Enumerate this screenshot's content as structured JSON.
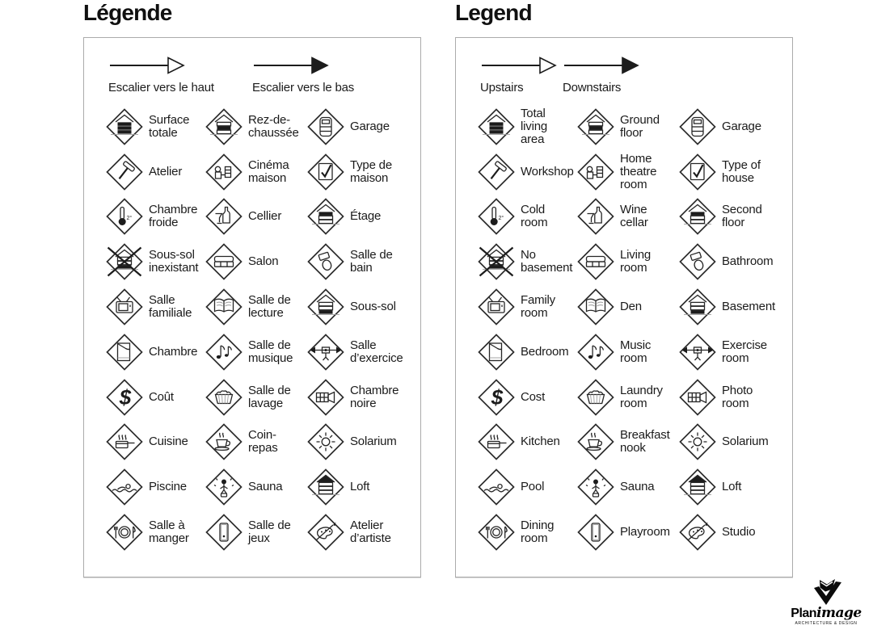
{
  "colors": {
    "ink": "#1b1b1b",
    "panel_border": "#ababab",
    "background": "#ffffff"
  },
  "panels": [
    {
      "id": "french",
      "title": "Légende",
      "arrows": [
        {
          "icon": "stairs-up-arrow",
          "label": "Escalier vers le haut"
        },
        {
          "icon": "stairs-down-arrow",
          "label": "Escalier vers le bas"
        }
      ],
      "items": [
        {
          "icon": "total-area",
          "label": "Surface\ntotale"
        },
        {
          "icon": "ground-floor",
          "label": "Rez-de-\nchaussée"
        },
        {
          "icon": "garage",
          "label": "Garage"
        },
        {
          "icon": "workshop",
          "label": "Atelier"
        },
        {
          "icon": "home-theatre",
          "label": "Cinéma\nmaison"
        },
        {
          "icon": "house-type",
          "label": "Type de\nmaison"
        },
        {
          "icon": "cold-room",
          "label": "Chambre\nfroide"
        },
        {
          "icon": "wine-cellar",
          "label": "Cellier"
        },
        {
          "icon": "second-floor",
          "label": "Étage"
        },
        {
          "icon": "no-basement",
          "label": "Sous-sol\ninexistant"
        },
        {
          "icon": "living-room",
          "label": "Salon"
        },
        {
          "icon": "bathroom",
          "label": "Salle de\nbain"
        },
        {
          "icon": "family-room",
          "label": "Salle\nfamiliale"
        },
        {
          "icon": "den",
          "label": "Salle de\nlecture"
        },
        {
          "icon": "basement",
          "label": "Sous-sol"
        },
        {
          "icon": "bedroom",
          "label": "Chambre"
        },
        {
          "icon": "music-room",
          "label": "Salle de\nmusique"
        },
        {
          "icon": "exercise-room",
          "label": "Salle\nd’exercice"
        },
        {
          "icon": "cost",
          "label": "Coût"
        },
        {
          "icon": "laundry",
          "label": "Salle de\nlavage"
        },
        {
          "icon": "photo-room",
          "label": "Chambre\nnoire"
        },
        {
          "icon": "kitchen",
          "label": "Cuisine"
        },
        {
          "icon": "breakfast-nook",
          "label": "Coin-\nrepas"
        },
        {
          "icon": "solarium",
          "label": "Solarium"
        },
        {
          "icon": "pool",
          "label": "Piscine"
        },
        {
          "icon": "sauna",
          "label": "Sauna"
        },
        {
          "icon": "loft",
          "label": "Loft"
        },
        {
          "icon": "dining-room",
          "label": "Salle à\nmanger"
        },
        {
          "icon": "playroom",
          "label": "Salle de\njeux"
        },
        {
          "icon": "studio",
          "label": "Atelier\nd’artiste"
        }
      ]
    },
    {
      "id": "english",
      "title": "Legend",
      "arrows": [
        {
          "icon": "stairs-up-arrow",
          "label": "Upstairs"
        },
        {
          "icon": "stairs-down-arrow",
          "label": "Downstairs"
        }
      ],
      "items": [
        {
          "icon": "total-area",
          "label": "Total\nliving\narea"
        },
        {
          "icon": "ground-floor",
          "label": "Ground\nfloor"
        },
        {
          "icon": "garage",
          "label": "Garage"
        },
        {
          "icon": "workshop",
          "label": "Workshop"
        },
        {
          "icon": "home-theatre",
          "label": "Home\ntheatre\nroom"
        },
        {
          "icon": "house-type",
          "label": "Type of\nhouse"
        },
        {
          "icon": "cold-room",
          "label": "Cold\nroom"
        },
        {
          "icon": "wine-cellar",
          "label": "Wine\ncellar"
        },
        {
          "icon": "second-floor",
          "label": "Second\nfloor"
        },
        {
          "icon": "no-basement",
          "label": "No\nbasement"
        },
        {
          "icon": "living-room",
          "label": "Living\nroom"
        },
        {
          "icon": "bathroom",
          "label": "Bathroom"
        },
        {
          "icon": "family-room",
          "label": "Family\nroom"
        },
        {
          "icon": "den",
          "label": "Den"
        },
        {
          "icon": "basement",
          "label": "Basement"
        },
        {
          "icon": "bedroom",
          "label": "Bedroom"
        },
        {
          "icon": "music-room",
          "label": "Music\nroom"
        },
        {
          "icon": "exercise-room",
          "label": "Exercise\nroom"
        },
        {
          "icon": "cost",
          "label": "Cost"
        },
        {
          "icon": "laundry",
          "label": "Laundry\nroom"
        },
        {
          "icon": "photo-room",
          "label": "Photo\nroom"
        },
        {
          "icon": "kitchen",
          "label": "Kitchen"
        },
        {
          "icon": "breakfast-nook",
          "label": "Breakfast\nnook"
        },
        {
          "icon": "solarium",
          "label": "Solarium"
        },
        {
          "icon": "pool",
          "label": "Pool"
        },
        {
          "icon": "sauna",
          "label": "Sauna"
        },
        {
          "icon": "loft",
          "label": "Loft"
        },
        {
          "icon": "dining-room",
          "label": "Dining\nroom"
        },
        {
          "icon": "playroom",
          "label": "Playroom"
        },
        {
          "icon": "studio",
          "label": "Studio"
        }
      ]
    }
  ],
  "logo": {
    "name_bold": "Plan",
    "name_italic": "image",
    "tagline": "ARCHITECTURE & DESIGN"
  }
}
